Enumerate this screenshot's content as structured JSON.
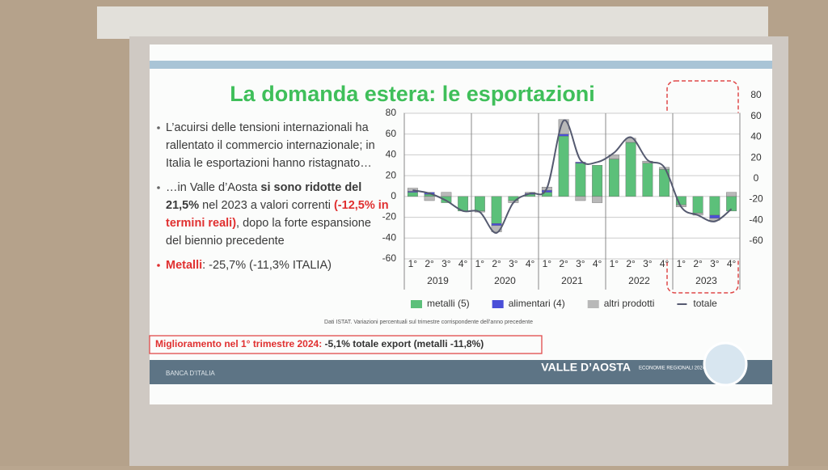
{
  "slide": {
    "title": "La domanda estera: le esportazioni",
    "bullets": [
      [
        {
          "text": "L’acuirsi delle tensioni internazionali ha rallentato il commercio internazionale; in Italia le esportazioni hanno ristagnato…",
          "style": "normal"
        }
      ],
      [
        {
          "text": "…in Valle d’Aosta ",
          "style": "normal"
        },
        {
          "text": "si sono ridotte del 21,5%",
          "style": "bold"
        },
        {
          "text": " nel 2023 a valori correnti ",
          "style": "normal"
        },
        {
          "text": "(-12,5% in termini reali)",
          "style": "red"
        },
        {
          "text": ", dopo la forte espansione del biennio precedente",
          "style": "normal"
        }
      ],
      [
        {
          "text": "Metalli",
          "style": "red"
        },
        {
          "text": ": -25,7% (-11,3% ITALIA)",
          "style": "normal"
        }
      ]
    ],
    "note": "Dati ISTAT. Variazioni percentuali sul trimestre corrispondente dell’anno precedente",
    "highlight": [
      {
        "text": "Miglioramento nel 1° trimestre 2024:",
        "style": "red"
      },
      {
        "text": " -5,1% totale export (metalli -11,8%)",
        "style": "bold"
      }
    ],
    "footer": {
      "region": "VALLE D’AOSTA",
      "series": "ECONOMIE REGIONALI 2024",
      "bank": "BANCA D’ITALIA"
    }
  },
  "chart_data": {
    "type": "bar",
    "stacked": true,
    "categories": [
      "1°",
      "2°",
      "3°",
      "4°",
      "1°",
      "2°",
      "3°",
      "4°",
      "1°",
      "2°",
      "3°",
      "4°",
      "1°",
      "2°",
      "3°",
      "4°",
      "1°",
      "2°",
      "3°",
      "4°"
    ],
    "years": [
      "2019",
      "2020",
      "2021",
      "2022",
      "2023"
    ],
    "series": [
      {
        "name": "metalli (5)",
        "color": "#5cc07a",
        "values": [
          4,
          2,
          -6,
          -14,
          -14,
          -26,
          -4,
          2,
          4,
          58,
          32,
          30,
          36,
          52,
          32,
          26,
          -8,
          -16,
          -18,
          -14
        ]
      },
      {
        "name": "alimentari (4)",
        "color": "#4a4fd8",
        "values": [
          1,
          2,
          0,
          0,
          0,
          -2,
          0,
          1,
          2,
          2,
          1,
          0,
          0,
          0,
          0,
          0,
          0,
          0,
          -3,
          0
        ]
      },
      {
        "name": "altri prodotti",
        "color": "#b8b8b8",
        "values": [
          3,
          -4,
          4,
          0,
          -1,
          -6,
          -2,
          1,
          3,
          14,
          -4,
          -6,
          4,
          4,
          2,
          2,
          -2,
          -2,
          -2,
          4
        ]
      },
      {
        "name": "totale",
        "type": "line",
        "color": "#555a70",
        "values": [
          6,
          3,
          -4,
          -14,
          -15,
          -35,
          -6,
          3,
          8,
          73,
          35,
          33,
          42,
          57,
          35,
          28,
          -10,
          -18,
          -24,
          -12
        ]
      }
    ],
    "ylim": [
      -60,
      80
    ],
    "yticks": [
      -60,
      -40,
      -20,
      0,
      20,
      40,
      60,
      80
    ],
    "y2lim": [
      -60,
      80
    ],
    "y2ticks": [
      -60,
      -40,
      -20,
      0,
      20,
      40,
      60,
      80
    ],
    "grid": true
  }
}
